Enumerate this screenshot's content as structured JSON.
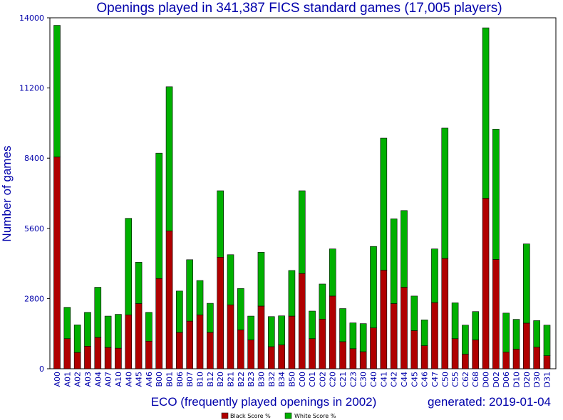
{
  "colors": {
    "black_score": "#b00000",
    "white_score": "#00b000",
    "text": "#0000aa",
    "frame": "#000000"
  },
  "chart_data": {
    "type": "bar",
    "stacked": true,
    "title": "Openings played in 341,387 FICS standard games (17,005 players)",
    "xlabel": "ECO (frequently played openings in 2002)",
    "ylabel": "Number of games",
    "footer": "generated: 2019-01-04",
    "ylim": [
      0,
      14000
    ],
    "yticks": [
      0,
      2800,
      5600,
      8400,
      11200,
      14000
    ],
    "grid": false,
    "legend_position": "bottom-center",
    "categories": [
      "A00",
      "A01",
      "A02",
      "A03",
      "A04",
      "A07",
      "A10",
      "A40",
      "A45",
      "A46",
      "B00",
      "B01",
      "B06",
      "B07",
      "B10",
      "B12",
      "B20",
      "B21",
      "B22",
      "B23",
      "B30",
      "B32",
      "B34",
      "B50",
      "C00",
      "C01",
      "C02",
      "C20",
      "C21",
      "C23",
      "C30",
      "C40",
      "C41",
      "C42",
      "C44",
      "C45",
      "C46",
      "C47",
      "C50",
      "C55",
      "C62",
      "C68",
      "D00",
      "D02",
      "D06",
      "D10",
      "D20",
      "D30",
      "D31"
    ],
    "series": [
      {
        "name": "Black Score %",
        "values": [
          8450,
          1200,
          650,
          900,
          1250,
          850,
          820,
          2150,
          2600,
          1100,
          3600,
          5500,
          1450,
          1900,
          2150,
          1450,
          4450,
          2550,
          1550,
          1150,
          2500,
          880,
          950,
          2100,
          3800,
          1200,
          1980,
          2900,
          1080,
          800,
          680,
          1630,
          3930,
          2600,
          3250,
          1520,
          920,
          2640,
          4400,
          1200,
          580,
          1150,
          6800,
          4360,
          660,
          780,
          1820,
          860,
          520
        ]
      },
      {
        "name": "White Score %",
        "values": [
          5250,
          1250,
          1100,
          1350,
          2000,
          1250,
          1350,
          3850,
          1650,
          1150,
          5000,
          5750,
          1650,
          2450,
          1370,
          1160,
          2650,
          2000,
          1650,
          950,
          2150,
          1200,
          1160,
          1820,
          3300,
          1100,
          1400,
          1880,
          1320,
          1030,
          1120,
          3250,
          5270,
          3380,
          3060,
          1380,
          1030,
          2140,
          5200,
          1430,
          1160,
          1130,
          6800,
          5200,
          1560,
          1190,
          3160,
          1060,
          1220
        ]
      }
    ]
  }
}
